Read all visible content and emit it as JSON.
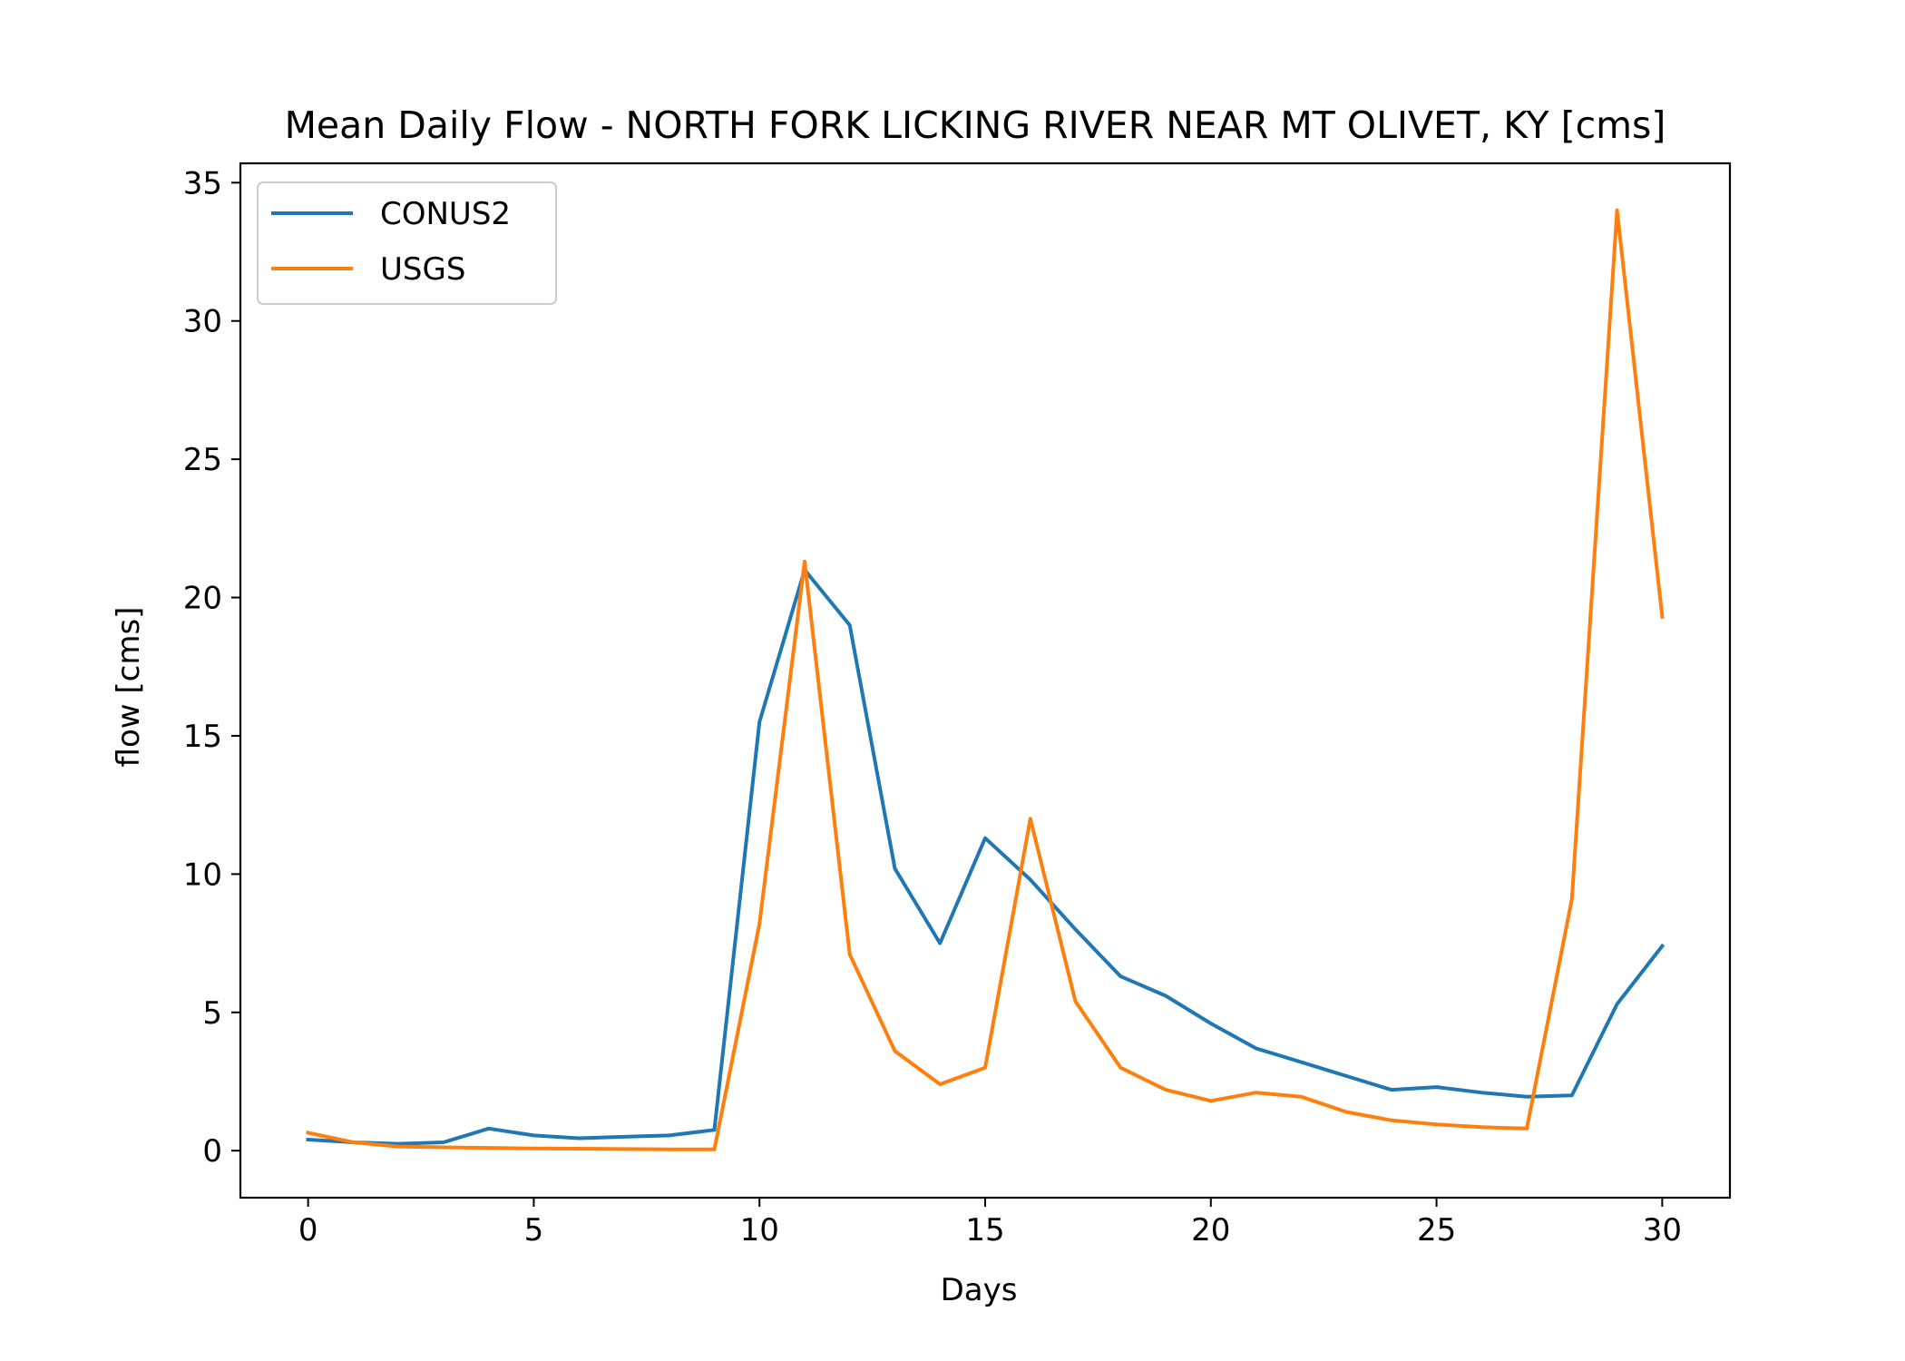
{
  "chart_data": {
    "type": "line",
    "title": "Mean Daily Flow - NORTH FORK LICKING RIVER NEAR MT OLIVET, KY [cms]",
    "xlabel": "Days",
    "ylabel": "flow [cms]",
    "xlim": [
      -1.5,
      31.5
    ],
    "ylim": [
      -1.7,
      35.7
    ],
    "xticks": [
      0,
      5,
      10,
      15,
      20,
      25,
      30
    ],
    "yticks": [
      0,
      5,
      10,
      15,
      20,
      25,
      30,
      35
    ],
    "grid": false,
    "legend_position": "upper-left",
    "x": [
      0,
      1,
      2,
      3,
      4,
      5,
      6,
      7,
      8,
      9,
      10,
      11,
      12,
      13,
      14,
      15,
      16,
      17,
      18,
      19,
      20,
      21,
      22,
      23,
      24,
      25,
      26,
      27,
      28,
      29,
      30
    ],
    "series": [
      {
        "name": "CONUS2",
        "color": "#1f77b4",
        "values": [
          0.4,
          0.3,
          0.25,
          0.3,
          0.8,
          0.55,
          0.45,
          0.5,
          0.55,
          0.75,
          15.5,
          21.0,
          19.0,
          10.2,
          7.5,
          11.3,
          9.8,
          8.0,
          6.3,
          5.6,
          4.6,
          3.7,
          3.2,
          2.7,
          2.2,
          2.3,
          2.1,
          1.95,
          2.0,
          5.3,
          7.4
        ]
      },
      {
        "name": "USGS",
        "color": "#ff7f0e",
        "values": [
          0.65,
          0.3,
          0.15,
          0.12,
          0.1,
          0.08,
          0.07,
          0.06,
          0.05,
          0.05,
          8.2,
          21.3,
          7.1,
          3.6,
          2.4,
          3.0,
          12.0,
          5.4,
          3.0,
          2.2,
          1.8,
          2.1,
          1.95,
          1.4,
          1.1,
          0.95,
          0.85,
          0.8,
          9.1,
          34.0,
          19.3
        ]
      }
    ]
  }
}
